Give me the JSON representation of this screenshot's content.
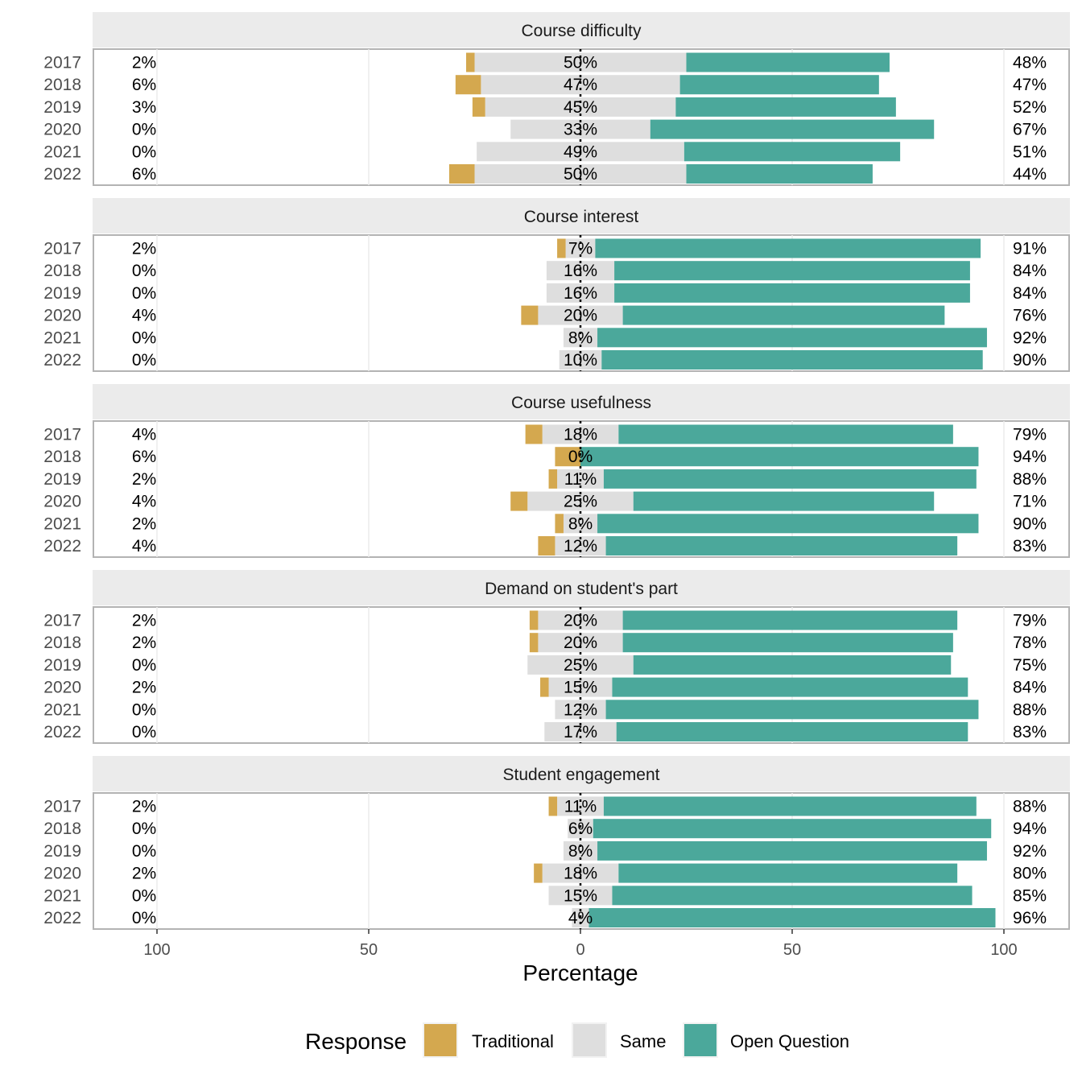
{
  "chart_data": {
    "type": "bar",
    "subtype": "diverging-stacked-horizontal-faceted",
    "xlabel": "Percentage",
    "x_ticks": [
      100,
      50,
      0,
      50,
      100
    ],
    "xlim": [
      -100,
      100
    ],
    "years": [
      "2017",
      "2018",
      "2019",
      "2020",
      "2021",
      "2022"
    ],
    "legend": {
      "title": "Response",
      "position": "bottom",
      "entries": [
        {
          "key": "traditional",
          "label": "Traditional",
          "color": "#D4A84F"
        },
        {
          "key": "same",
          "label": "Same",
          "color": "#DEDEDE"
        },
        {
          "key": "open",
          "label": "Open Question",
          "color": "#4BA89B"
        }
      ]
    },
    "facets": [
      {
        "title": "Course difficulty",
        "traditional": [
          2,
          6,
          3,
          0,
          0,
          6
        ],
        "same": [
          50,
          47,
          45,
          33,
          49,
          50
        ],
        "open": [
          48,
          47,
          52,
          67,
          51,
          44
        ],
        "left_labels": [
          "2%",
          "6%",
          "3%",
          "0%",
          "0%",
          "6%"
        ],
        "center_labels": [
          "50%",
          "47%",
          "45%",
          "33%",
          "49%",
          "50%"
        ],
        "right_labels": [
          "48%",
          "47%",
          "52%",
          "67%",
          "51%",
          "44%"
        ]
      },
      {
        "title": "Course interest",
        "traditional": [
          2,
          0,
          0,
          4,
          0,
          0
        ],
        "same": [
          7,
          16,
          16,
          20,
          8,
          10
        ],
        "open": [
          91,
          84,
          84,
          76,
          92,
          90
        ],
        "left_labels": [
          "2%",
          "0%",
          "0%",
          "4%",
          "0%",
          "0%"
        ],
        "center_labels": [
          "7%",
          "16%",
          "16%",
          "20%",
          "8%",
          "10%"
        ],
        "right_labels": [
          "91%",
          "84%",
          "84%",
          "76%",
          "92%",
          "90%"
        ]
      },
      {
        "title": "Course usefulness",
        "traditional": [
          4,
          6,
          2,
          4,
          2,
          4
        ],
        "same": [
          18,
          0,
          11,
          25,
          8,
          12
        ],
        "open": [
          79,
          94,
          88,
          71,
          90,
          83
        ],
        "left_labels": [
          "4%",
          "6%",
          "2%",
          "4%",
          "2%",
          "4%"
        ],
        "center_labels": [
          "18%",
          "0%",
          "11%",
          "25%",
          "8%",
          "12%"
        ],
        "right_labels": [
          "79%",
          "94%",
          "88%",
          "71%",
          "90%",
          "83%"
        ]
      },
      {
        "title": "Demand on student's part",
        "traditional": [
          2,
          2,
          0,
          2,
          0,
          0
        ],
        "same": [
          20,
          20,
          25,
          15,
          12,
          17
        ],
        "open": [
          79,
          78,
          75,
          84,
          88,
          83
        ],
        "left_labels": [
          "2%",
          "2%",
          "0%",
          "2%",
          "0%",
          "0%"
        ],
        "center_labels": [
          "20%",
          "20%",
          "25%",
          "15%",
          "12%",
          "17%"
        ],
        "right_labels": [
          "79%",
          "78%",
          "75%",
          "84%",
          "88%",
          "83%"
        ]
      },
      {
        "title": "Student engagement",
        "traditional": [
          2,
          0,
          0,
          2,
          0,
          0
        ],
        "same": [
          11,
          6,
          8,
          18,
          15,
          4
        ],
        "open": [
          88,
          94,
          92,
          80,
          85,
          96
        ],
        "left_labels": [
          "2%",
          "0%",
          "0%",
          "2%",
          "0%",
          "0%"
        ],
        "center_labels": [
          "11%",
          "6%",
          "8%",
          "18%",
          "15%",
          "4%"
        ],
        "right_labels": [
          "88%",
          "94%",
          "92%",
          "80%",
          "85%",
          "96%"
        ]
      }
    ]
  }
}
